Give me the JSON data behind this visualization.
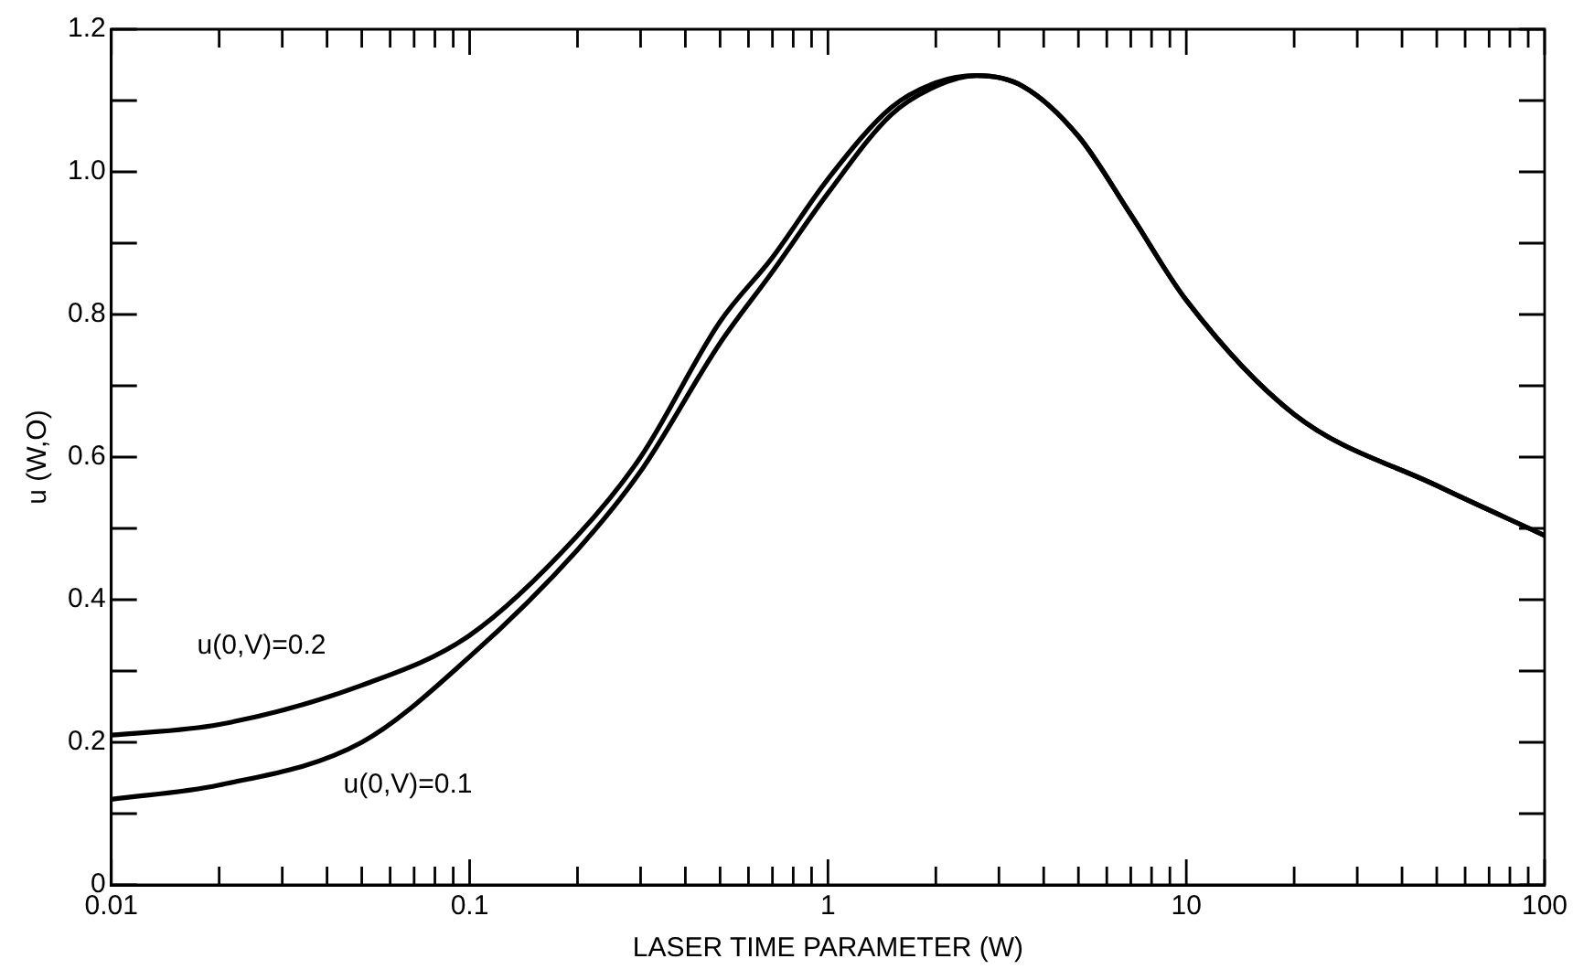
{
  "chart_data": {
    "type": "line",
    "xlabel": "LASER TIME PARAMETER (W)",
    "ylabel": "u (W,O)",
    "log": "x",
    "xlim": [
      0.01,
      100
    ],
    "ylim": [
      0,
      1.2
    ],
    "xticks": [
      0.01,
      {
        "value": 0.02,
        "label": null
      },
      {
        "value": 0.03,
        "label": null
      },
      {
        "value": 0.04,
        "label": null
      },
      {
        "value": 0.05,
        "label": null
      },
      {
        "value": 0.06,
        "label": null
      },
      {
        "value": 0.07,
        "label": null
      },
      {
        "value": 0.08,
        "label": null
      },
      {
        "value": 0.09,
        "label": null
      },
      0.1,
      {
        "value": 0.2,
        "label": null
      },
      {
        "value": 0.3,
        "label": null
      },
      {
        "value": 0.4,
        "label": null
      },
      {
        "value": 0.5,
        "label": null
      },
      {
        "value": 0.6,
        "label": null
      },
      {
        "value": 0.7,
        "label": null
      },
      {
        "value": 0.8,
        "label": null
      },
      {
        "value": 0.9,
        "label": null
      },
      1,
      {
        "value": 2,
        "label": null
      },
      {
        "value": 3,
        "label": null
      },
      {
        "value": 4,
        "label": null
      },
      {
        "value": 5,
        "label": null
      },
      {
        "value": 6,
        "label": null
      },
      {
        "value": 7,
        "label": null
      },
      {
        "value": 8,
        "label": null
      },
      {
        "value": 9,
        "label": null
      },
      10,
      {
        "value": 20,
        "label": null
      },
      {
        "value": 30,
        "label": null
      },
      {
        "value": 40,
        "label": null
      },
      {
        "value": 50,
        "label": null
      },
      {
        "value": 60,
        "label": null
      },
      {
        "value": 70,
        "label": null
      },
      {
        "value": 80,
        "label": null
      },
      {
        "value": 90,
        "label": null
      },
      100
    ],
    "yticks": [
      0,
      {
        "value": 0.1,
        "label": null
      },
      0.2,
      {
        "value": 0.3,
        "label": null
      },
      0.4,
      {
        "value": 0.5,
        "label": null
      },
      0.6,
      {
        "value": 0.7,
        "label": null
      },
      0.8,
      {
        "value": 0.9,
        "label": null
      },
      {
        "value": 1,
        "label": "1.0"
      },
      {
        "value": 1.1,
        "label": null
      },
      1.2
    ],
    "grid": false,
    "legend": false,
    "marker": "none",
    "line_style": "solid",
    "series": [
      {
        "name": "u(0,V)=0.2",
        "color": "#000000",
        "x": [
          0.01,
          0.02,
          0.05,
          0.1,
          0.2,
          0.3,
          0.5,
          0.7,
          1,
          1.5,
          2,
          2.6,
          3.5,
          5,
          7,
          10,
          20,
          50,
          100
        ],
        "values": [
          0.21,
          0.225,
          0.28,
          0.35,
          0.49,
          0.6,
          0.79,
          0.88,
          0.99,
          1.09,
          1.125,
          1.135,
          1.12,
          1.05,
          0.94,
          0.82,
          0.66,
          0.56,
          0.49
        ]
      },
      {
        "name": "u(0,V)=0.1",
        "color": "#000000",
        "x": [
          0.01,
          0.02,
          0.05,
          0.1,
          0.2,
          0.3,
          0.5,
          0.7,
          1,
          1.5,
          2,
          2.6,
          3.5,
          5,
          7,
          10,
          20,
          50,
          100
        ],
        "values": [
          0.12,
          0.14,
          0.2,
          0.32,
          0.47,
          0.58,
          0.76,
          0.86,
          0.97,
          1.08,
          1.12,
          1.135,
          1.12,
          1.05,
          0.94,
          0.82,
          0.66,
          0.56,
          0.49
        ]
      }
    ]
  }
}
